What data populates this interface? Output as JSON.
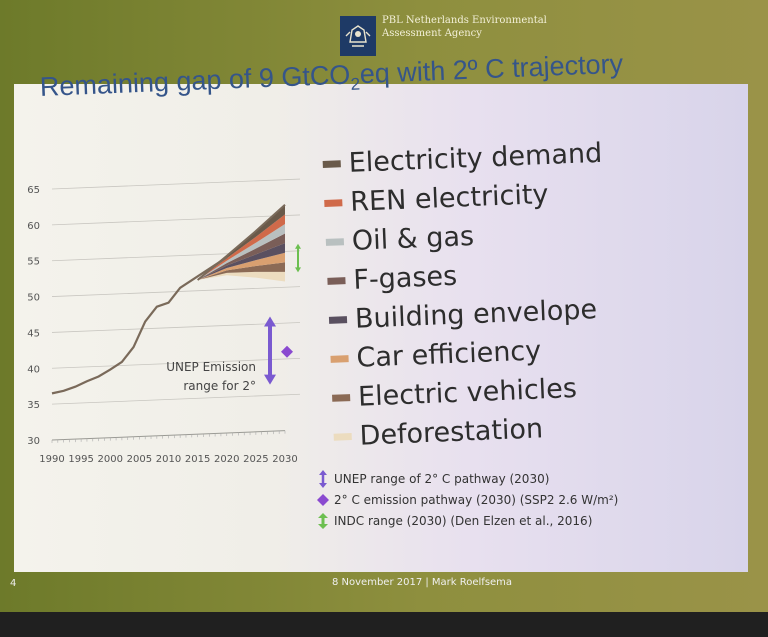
{
  "header": {
    "agency_line1": "PBL Netherlands Environmental",
    "agency_line2": "Assessment Agency"
  },
  "slide": {
    "title_main": "Remaining gap of 9 GtCO",
    "title_sub": "2",
    "title_rest": "eq with 2º C trajectory",
    "page_number": "4",
    "footer_text": "8 November 2017 | Mark Roelfsema"
  },
  "legend": [
    {
      "label": "Electricity demand",
      "color": "#6a5a4a"
    },
    {
      "label": "REN electricity",
      "color": "#d06a4a"
    },
    {
      "label": "Oil & gas",
      "color": "#b9c0c0"
    },
    {
      "label": "F-gases",
      "color": "#7a5e58"
    },
    {
      "label": "Building envelope",
      "color": "#5a5060"
    },
    {
      "label": "Car efficiency",
      "color": "#d9a070"
    },
    {
      "label": "Electric vehicles",
      "color": "#8b6a55"
    },
    {
      "label": "Deforestation",
      "color": "#ecdcbf"
    }
  ],
  "notes": [
    {
      "icon": "purple-arrow-icon",
      "text": "UNEP range of 2° C pathway (2030)"
    },
    {
      "icon": "purple-diamond-icon",
      "text": "2° C emission pathway (2030) (SSP2 2.6 W/m²)"
    },
    {
      "icon": "green-arrow-icon",
      "text": "INDC range (2030) (Den Elzen et al., 2016)"
    }
  ],
  "chart_data": {
    "type": "area",
    "ylim": [
      30,
      65
    ],
    "yticks": [
      "65",
      "60",
      "55",
      "50",
      "45",
      "40",
      "35",
      "30"
    ],
    "xticks": [
      "1990",
      "1995",
      "2000",
      "2005",
      "2010",
      "2015",
      "2020",
      "2025",
      "2030"
    ],
    "grid": true,
    "historical": {
      "x": [
        1990,
        1992,
        1994,
        1996,
        1998,
        2000,
        2002,
        2004,
        2006,
        2008,
        2010,
        2012,
        2014,
        2016,
        2018,
        2020
      ],
      "y": [
        36.5,
        36.8,
        37.3,
        38.0,
        38.6,
        39.5,
        40.5,
        42.5,
        46.0,
        48.0,
        48.5,
        50.5,
        51.5,
        52.5,
        53.5,
        54.5
      ]
    },
    "scenario_x": [
      2015,
      2020,
      2025,
      2030
    ],
    "top_y": [
      51.5,
      54.7,
      58.0,
      61.5
    ],
    "bottom_y": [
      51.5,
      52.0,
      51.5,
      50.8
    ],
    "annotation": {
      "text_line1": "UNEP Emission",
      "text_line2": "range for 2°",
      "range": [
        36.5,
        46.0
      ],
      "x": 2025
    },
    "pathway_2030": 41.0,
    "indc_range": [
      52.0,
      56.0
    ]
  },
  "colors": {
    "history_line": "#7a6a5a",
    "unep_arrow": "#7a5ad0",
    "diamond": "#8a4ad0",
    "indc_arrow": "#6cbf50",
    "grid": "#c8c6c0",
    "tick_text": "#555555"
  }
}
